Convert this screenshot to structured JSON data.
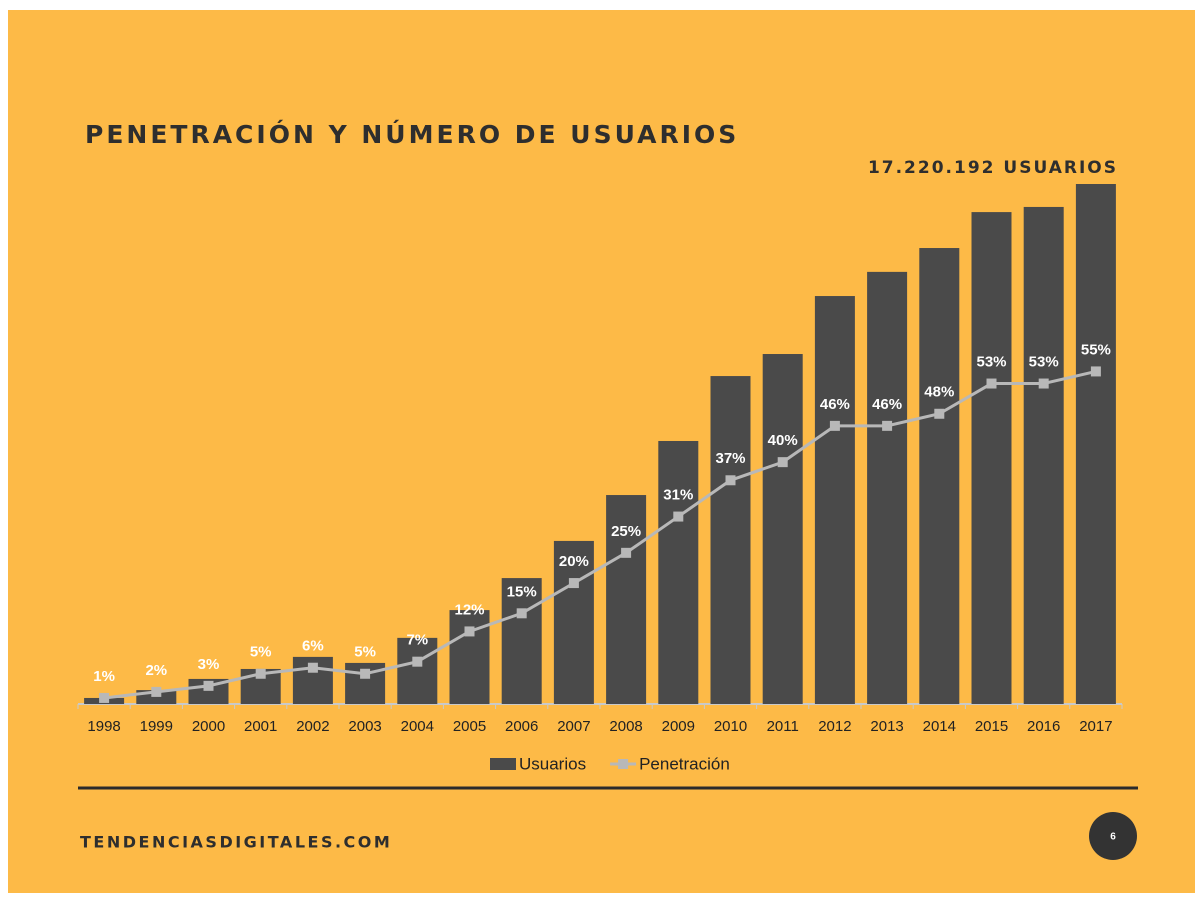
{
  "chart_data": {
    "type": "bar_line",
    "title": "PENETRACIÓN Y NÚMERO DE USUARIOS",
    "annotation": "17.220.192 USUARIOS",
    "categories": [
      "1998",
      "1999",
      "2000",
      "2001",
      "2002",
      "2003",
      "2004",
      "2005",
      "2006",
      "2007",
      "2008",
      "2009",
      "2010",
      "2011",
      "2012",
      "2013",
      "2014",
      "2015",
      "2016",
      "2017"
    ],
    "ylim": [
      0,
      17220192
    ],
    "y2lim": [
      0,
      86
    ],
    "legend": "bottom",
    "series": [
      {
        "name": "Usuarios",
        "type": "bar",
        "color": "#4a4a4a",
        "values": [
          200000,
          460000,
          830000,
          1160000,
          1560000,
          1360000,
          2190000,
          3110000,
          4170000,
          5400000,
          6920000,
          8710000,
          10860000,
          11590000,
          13510000,
          14310000,
          15100000,
          16290000,
          16460000,
          17220192
        ]
      },
      {
        "name": "Penetración",
        "type": "line",
        "axis": "y2",
        "color": "#b8b8b8",
        "values": [
          1,
          2,
          3,
          5,
          6,
          5,
          7,
          12,
          15,
          20,
          25,
          31,
          37,
          40,
          46,
          46,
          48,
          53,
          53,
          55
        ],
        "value_labels": [
          "1%",
          "2%",
          "3%",
          "5%",
          "6%",
          "5%",
          "7%",
          "12%",
          "15%",
          "20%",
          "25%",
          "31%",
          "37%",
          "40%",
          "46%",
          "46%",
          "48%",
          "53%",
          "53%",
          "55%"
        ]
      }
    ]
  },
  "footer": {
    "site": "TENDENCIASDIGITALES.COM",
    "page": "6"
  }
}
